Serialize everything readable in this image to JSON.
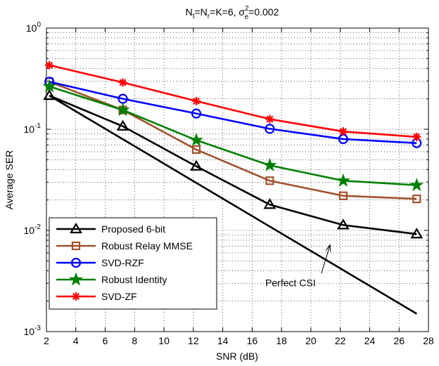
{
  "chart_data": {
    "type": "line",
    "title_parts": {
      "n1": "N",
      "t": "t",
      "eq1": "=N",
      "r": "r",
      "rest": "=K=6, σ",
      "sup": "2",
      "sub": "e",
      "tail": "=0.002"
    },
    "xlabel": "SNR (dB)",
    "ylabel": "Average SER",
    "xlim": [
      2,
      28
    ],
    "ylim": [
      0.001,
      1
    ],
    "yscale": "log",
    "grid": true,
    "legend_position": "bottom-left",
    "x_ticks": [
      "2",
      "4",
      "6",
      "8",
      "10",
      "12",
      "14",
      "16",
      "18",
      "20",
      "22",
      "24",
      "26",
      "28"
    ],
    "y_ticks": [
      {
        "base": "10",
        "exp": "0",
        "value": 1
      },
      {
        "base": "10",
        "exp": "-1",
        "value": 0.1
      },
      {
        "base": "10",
        "exp": "-2",
        "value": 0.01
      },
      {
        "base": "10",
        "exp": "-3",
        "value": 0.001
      }
    ],
    "series": [
      {
        "name": "Proposed 6-bit",
        "color": "#000000",
        "marker": "triangle",
        "x": [
          2.2,
          7.2,
          12.2,
          17.2,
          22.2,
          27.2
        ],
        "y": [
          0.215,
          0.107,
          0.043,
          0.018,
          0.0113,
          0.0092
        ]
      },
      {
        "name": "Robust Relay MMSE",
        "color": "#a0522d",
        "marker": "square",
        "x": [
          2.2,
          7.2,
          12.2,
          17.2,
          22.2,
          27.2
        ],
        "y": [
          0.295,
          0.155,
          0.063,
          0.031,
          0.022,
          0.0205
        ]
      },
      {
        "name": "SVD-RZF",
        "color": "#0000ff",
        "marker": "circle",
        "x": [
          2.2,
          7.2,
          12.2,
          17.2,
          22.2,
          27.2
        ],
        "y": [
          0.295,
          0.2,
          0.143,
          0.101,
          0.08,
          0.073
        ]
      },
      {
        "name": "Robust Identity",
        "color": "#008000",
        "marker": "star",
        "x": [
          2.2,
          7.2,
          12.2,
          17.2,
          22.2,
          27.2
        ],
        "y": [
          0.265,
          0.155,
          0.078,
          0.044,
          0.031,
          0.028
        ]
      },
      {
        "name": "SVD-ZF",
        "color": "#ff0000",
        "marker": "asterisk",
        "x": [
          2.2,
          7.2,
          12.2,
          17.2,
          22.2,
          27.2
        ],
        "y": [
          0.43,
          0.29,
          0.19,
          0.126,
          0.095,
          0.084
        ]
      },
      {
        "name": "Perfect CSI",
        "color": "#000000",
        "marker": "none",
        "x": [
          2.2,
          27.2
        ],
        "y": [
          0.215,
          0.0015
        ]
      }
    ],
    "annotation": {
      "text": "Perfect CSI",
      "arrow_to": {
        "x": 21.3,
        "y": 0.0072
      },
      "text_at": {
        "x": 18.8,
        "y": 0.0032
      }
    }
  }
}
